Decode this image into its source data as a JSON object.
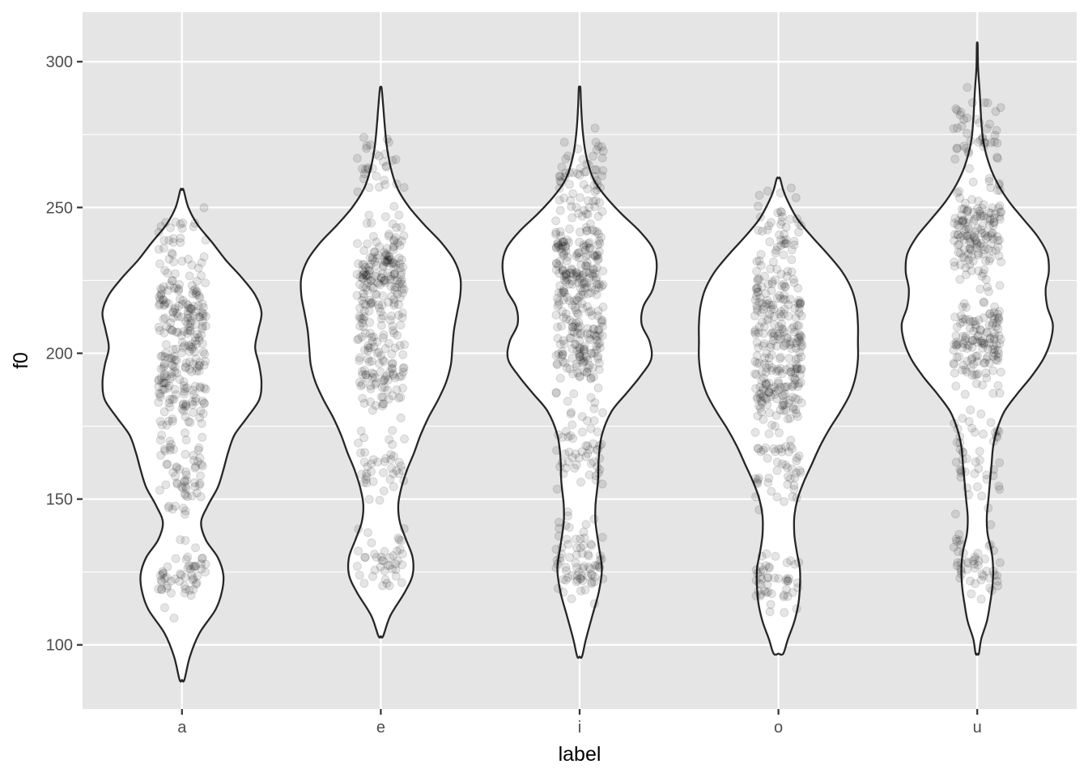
{
  "chart_data": {
    "type": "violin",
    "title": "",
    "xlabel": "label",
    "ylabel": "f0",
    "categories": [
      "a",
      "e",
      "i",
      "o",
      "u"
    ],
    "ylim": [
      78,
      317
    ],
    "yticks": [
      100,
      150,
      200,
      250,
      300
    ],
    "grid": true,
    "legend": "none",
    "colors": {
      "panel": "#e5e5e5",
      "grid": "#ffffff",
      "violin_fill": "#ffffff",
      "violin_stroke": "#262626",
      "point": "#000000"
    },
    "series": [
      {
        "category": "a",
        "min": 88,
        "max": 256,
        "density": [
          [
            88,
            0.03
          ],
          [
            96,
            0.1
          ],
          [
            104,
            0.22
          ],
          [
            112,
            0.42
          ],
          [
            118,
            0.5
          ],
          [
            124,
            0.52
          ],
          [
            130,
            0.45
          ],
          [
            136,
            0.3
          ],
          [
            142,
            0.24
          ],
          [
            148,
            0.33
          ],
          [
            154,
            0.45
          ],
          [
            160,
            0.52
          ],
          [
            166,
            0.58
          ],
          [
            172,
            0.66
          ],
          [
            178,
            0.82
          ],
          [
            184,
            0.97
          ],
          [
            190,
            1.0
          ],
          [
            196,
            0.97
          ],
          [
            202,
            0.92
          ],
          [
            208,
            0.96
          ],
          [
            214,
            1.0
          ],
          [
            220,
            0.92
          ],
          [
            226,
            0.75
          ],
          [
            232,
            0.55
          ],
          [
            238,
            0.38
          ],
          [
            244,
            0.2
          ],
          [
            250,
            0.08
          ],
          [
            256,
            0.02
          ]
        ],
        "points": {
          "count": 380,
          "clusters": [
            [
              190,
              14,
              0.35
            ],
            [
              215,
              12,
              0.3
            ],
            [
              160,
              12,
              0.15
            ],
            [
              125,
              8,
              0.12
            ],
            [
              240,
              8,
              0.08
            ]
          ]
        }
      },
      {
        "category": "e",
        "min": 103,
        "max": 291,
        "density": [
          [
            103,
            0.03
          ],
          [
            110,
            0.12
          ],
          [
            118,
            0.3
          ],
          [
            124,
            0.4
          ],
          [
            130,
            0.4
          ],
          [
            136,
            0.32
          ],
          [
            142,
            0.24
          ],
          [
            148,
            0.22
          ],
          [
            154,
            0.26
          ],
          [
            160,
            0.33
          ],
          [
            166,
            0.42
          ],
          [
            172,
            0.5
          ],
          [
            178,
            0.6
          ],
          [
            184,
            0.72
          ],
          [
            190,
            0.82
          ],
          [
            196,
            0.88
          ],
          [
            202,
            0.9
          ],
          [
            208,
            0.92
          ],
          [
            214,
            0.96
          ],
          [
            220,
            1.0
          ],
          [
            226,
            1.0
          ],
          [
            232,
            0.92
          ],
          [
            238,
            0.76
          ],
          [
            244,
            0.55
          ],
          [
            250,
            0.36
          ],
          [
            256,
            0.22
          ],
          [
            262,
            0.14
          ],
          [
            270,
            0.08
          ],
          [
            278,
            0.05
          ],
          [
            285,
            0.03
          ],
          [
            291,
            0.01
          ]
        ],
        "points": {
          "count": 380,
          "clusters": [
            [
              225,
              14,
              0.42
            ],
            [
              195,
              12,
              0.28
            ],
            [
              160,
              10,
              0.12
            ],
            [
              130,
              8,
              0.12
            ],
            [
              265,
              10,
              0.06
            ]
          ]
        }
      },
      {
        "category": "i",
        "min": 96,
        "max": 291,
        "density": [
          [
            96,
            0.03
          ],
          [
            102,
            0.08
          ],
          [
            110,
            0.16
          ],
          [
            118,
            0.24
          ],
          [
            126,
            0.28
          ],
          [
            134,
            0.24
          ],
          [
            142,
            0.2
          ],
          [
            148,
            0.2
          ],
          [
            156,
            0.23
          ],
          [
            164,
            0.24
          ],
          [
            172,
            0.28
          ],
          [
            180,
            0.4
          ],
          [
            186,
            0.58
          ],
          [
            192,
            0.76
          ],
          [
            198,
            0.9
          ],
          [
            204,
            0.88
          ],
          [
            210,
            0.78
          ],
          [
            216,
            0.8
          ],
          [
            222,
            0.92
          ],
          [
            230,
            0.97
          ],
          [
            236,
            0.92
          ],
          [
            242,
            0.75
          ],
          [
            248,
            0.52
          ],
          [
            254,
            0.32
          ],
          [
            260,
            0.17
          ],
          [
            268,
            0.08
          ],
          [
            276,
            0.04
          ],
          [
            284,
            0.02
          ],
          [
            291,
            0.01
          ]
        ],
        "points": {
          "count": 480,
          "clusters": [
            [
              230,
              14,
              0.38
            ],
            [
              202,
              10,
              0.26
            ],
            [
              168,
              10,
              0.12
            ],
            [
              130,
              10,
              0.14
            ],
            [
              260,
              10,
              0.1
            ]
          ]
        }
      },
      {
        "category": "o",
        "min": 97,
        "max": 260,
        "density": [
          [
            97,
            0.06
          ],
          [
            102,
            0.12
          ],
          [
            108,
            0.2
          ],
          [
            114,
            0.25
          ],
          [
            120,
            0.27
          ],
          [
            126,
            0.27
          ],
          [
            132,
            0.23
          ],
          [
            138,
            0.2
          ],
          [
            144,
            0.2
          ],
          [
            150,
            0.24
          ],
          [
            156,
            0.32
          ],
          [
            162,
            0.42
          ],
          [
            168,
            0.52
          ],
          [
            174,
            0.64
          ],
          [
            180,
            0.78
          ],
          [
            186,
            0.9
          ],
          [
            192,
            0.97
          ],
          [
            198,
            1.0
          ],
          [
            204,
            1.0
          ],
          [
            210,
            1.0
          ],
          [
            216,
            0.98
          ],
          [
            222,
            0.92
          ],
          [
            228,
            0.8
          ],
          [
            234,
            0.62
          ],
          [
            240,
            0.42
          ],
          [
            246,
            0.24
          ],
          [
            252,
            0.12
          ],
          [
            256,
            0.06
          ],
          [
            260,
            0.02
          ]
        ],
        "points": {
          "count": 400,
          "clusters": [
            [
              215,
              14,
              0.4
            ],
            [
              190,
              12,
              0.3
            ],
            [
              160,
              10,
              0.12
            ],
            [
              122,
              7,
              0.12
            ],
            [
              245,
              8,
              0.06
            ]
          ]
        }
      },
      {
        "category": "u",
        "min": 97,
        "max": 306,
        "density": [
          [
            97,
            0.02
          ],
          [
            102,
            0.05
          ],
          [
            108,
            0.12
          ],
          [
            114,
            0.16
          ],
          [
            120,
            0.19
          ],
          [
            126,
            0.2
          ],
          [
            132,
            0.18
          ],
          [
            138,
            0.13
          ],
          [
            144,
            0.12
          ],
          [
            150,
            0.14
          ],
          [
            156,
            0.16
          ],
          [
            162,
            0.18
          ],
          [
            168,
            0.2
          ],
          [
            174,
            0.25
          ],
          [
            180,
            0.34
          ],
          [
            186,
            0.5
          ],
          [
            192,
            0.68
          ],
          [
            198,
            0.83
          ],
          [
            204,
            0.92
          ],
          [
            210,
            0.95
          ],
          [
            216,
            0.88
          ],
          [
            222,
            0.86
          ],
          [
            228,
            0.9
          ],
          [
            234,
            0.88
          ],
          [
            240,
            0.76
          ],
          [
            246,
            0.58
          ],
          [
            252,
            0.4
          ],
          [
            258,
            0.26
          ],
          [
            264,
            0.16
          ],
          [
            272,
            0.08
          ],
          [
            280,
            0.05
          ],
          [
            290,
            0.03
          ],
          [
            298,
            0.01
          ],
          [
            306,
            0.005
          ]
        ],
        "points": {
          "count": 420,
          "clusters": [
            [
              240,
              12,
              0.32
            ],
            [
              205,
              12,
              0.3
            ],
            [
              165,
              12,
              0.14
            ],
            [
              128,
              8,
              0.12
            ],
            [
              275,
              14,
              0.12
            ]
          ]
        }
      }
    ]
  }
}
